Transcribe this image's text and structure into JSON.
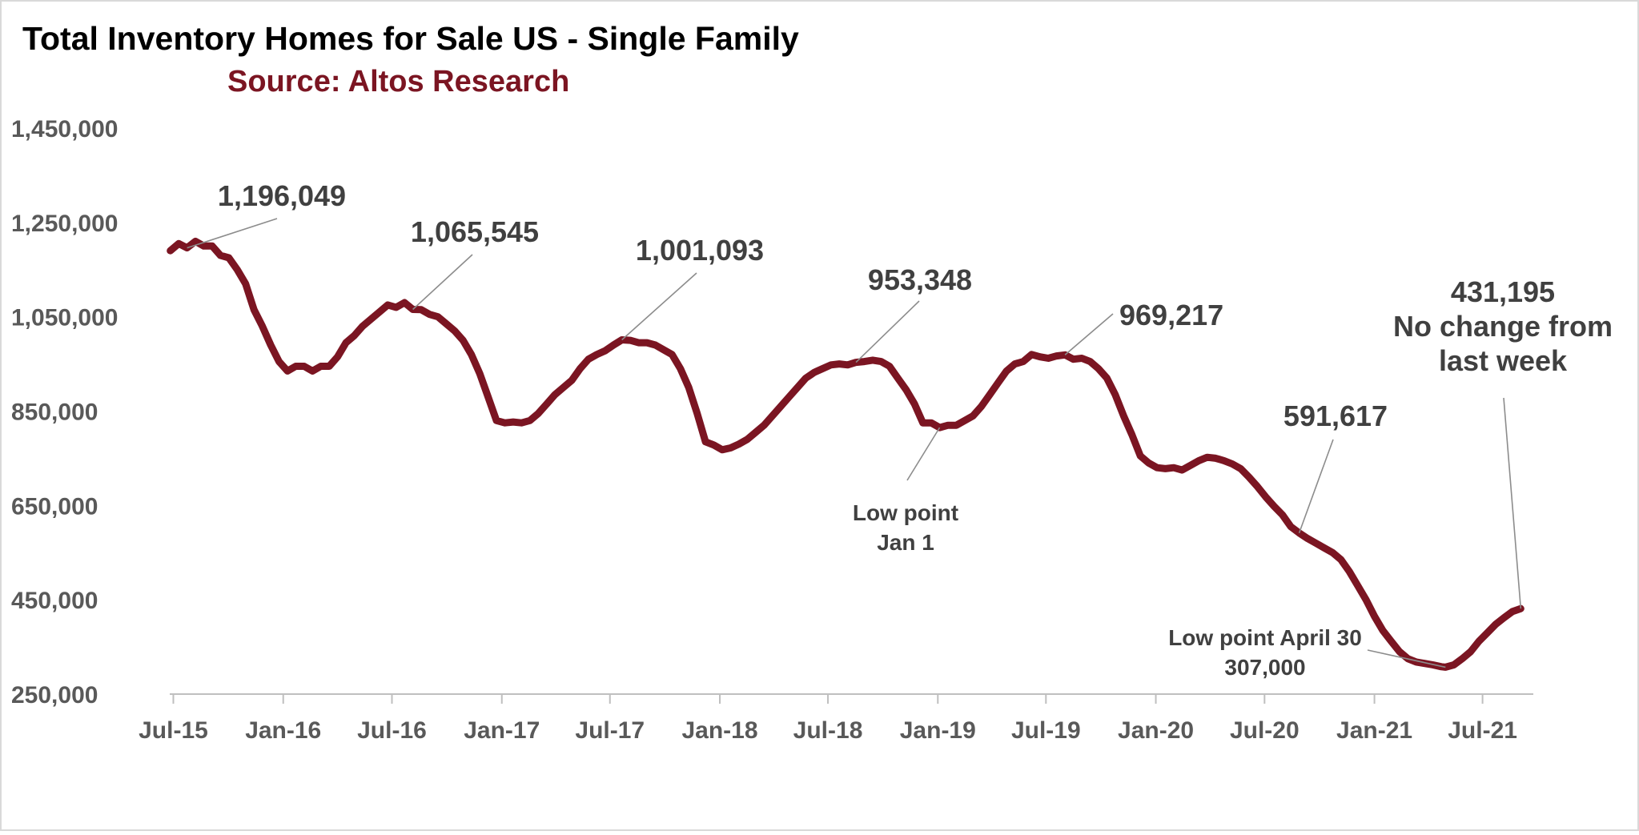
{
  "chart_data": {
    "type": "line",
    "title": "Total Inventory Homes for Sale US - Single Family",
    "subtitle": "Source: Altos Research",
    "series_color": "#7b1522",
    "xlabel": "",
    "ylabel": "",
    "x_start": "2015-06-25",
    "x_end": "2021-09-24",
    "ylim": [
      250000,
      1450000
    ],
    "y_ticks": [
      250000,
      450000,
      650000,
      850000,
      1050000,
      1250000,
      1450000
    ],
    "y_tick_labels": [
      "250,000",
      "450,000",
      "650,000",
      "850,000",
      "1,050,000",
      "1,250,000",
      "1,450,000"
    ],
    "x_ticks": [
      {
        "label": "Jul-15",
        "date": "2015-07-01"
      },
      {
        "label": "Jan-16",
        "date": "2016-01-01"
      },
      {
        "label": "Jul-16",
        "date": "2016-07-01"
      },
      {
        "label": "Jan-17",
        "date": "2017-01-01"
      },
      {
        "label": "Jul-17",
        "date": "2017-07-01"
      },
      {
        "label": "Jan-18",
        "date": "2018-01-01"
      },
      {
        "label": "Jul-18",
        "date": "2018-07-01"
      },
      {
        "label": "Jan-19",
        "date": "2019-01-01"
      },
      {
        "label": "Jul-19",
        "date": "2019-07-01"
      },
      {
        "label": "Jan-20",
        "date": "2020-01-01"
      },
      {
        "label": "Jul-20",
        "date": "2020-07-01"
      },
      {
        "label": "Jan-21",
        "date": "2021-01-01"
      },
      {
        "label": "Jul-21",
        "date": "2021-07-01"
      }
    ],
    "series": [
      {
        "name": "Total Inventory",
        "points": [
          [
            "2015-06-26",
            1190000
          ],
          [
            "2015-07-10",
            1205000
          ],
          [
            "2015-07-24",
            1196049
          ],
          [
            "2015-08-07",
            1210000
          ],
          [
            "2015-08-21",
            1200000
          ],
          [
            "2015-09-04",
            1200000
          ],
          [
            "2015-09-18",
            1180000
          ],
          [
            "2015-10-02",
            1175000
          ],
          [
            "2015-10-16",
            1150000
          ],
          [
            "2015-10-30",
            1120000
          ],
          [
            "2015-11-13",
            1065000
          ],
          [
            "2015-11-27",
            1030000
          ],
          [
            "2015-12-11",
            990000
          ],
          [
            "2015-12-25",
            955000
          ],
          [
            "2016-01-08",
            935000
          ],
          [
            "2016-01-22",
            945000
          ],
          [
            "2016-02-05",
            945000
          ],
          [
            "2016-02-19",
            935000
          ],
          [
            "2016-03-04",
            945000
          ],
          [
            "2016-03-18",
            945000
          ],
          [
            "2016-04-01",
            965000
          ],
          [
            "2016-04-15",
            995000
          ],
          [
            "2016-04-29",
            1010000
          ],
          [
            "2016-05-13",
            1030000
          ],
          [
            "2016-05-27",
            1045000
          ],
          [
            "2016-06-10",
            1060000
          ],
          [
            "2016-06-24",
            1075000
          ],
          [
            "2016-07-08",
            1070000
          ],
          [
            "2016-07-22",
            1080000
          ],
          [
            "2016-08-05",
            1065545
          ],
          [
            "2016-08-19",
            1065000
          ],
          [
            "2016-09-02",
            1055000
          ],
          [
            "2016-09-16",
            1050000
          ],
          [
            "2016-09-30",
            1035000
          ],
          [
            "2016-10-14",
            1020000
          ],
          [
            "2016-10-28",
            1000000
          ],
          [
            "2016-11-11",
            970000
          ],
          [
            "2016-11-25",
            930000
          ],
          [
            "2016-12-09",
            880000
          ],
          [
            "2016-12-23",
            830000
          ],
          [
            "2017-01-06",
            825000
          ],
          [
            "2017-01-20",
            827000
          ],
          [
            "2017-02-03",
            825000
          ],
          [
            "2017-02-17",
            830000
          ],
          [
            "2017-03-03",
            845000
          ],
          [
            "2017-03-17",
            865000
          ],
          [
            "2017-03-31",
            885000
          ],
          [
            "2017-04-14",
            900000
          ],
          [
            "2017-04-28",
            915000
          ],
          [
            "2017-05-12",
            940000
          ],
          [
            "2017-05-26",
            960000
          ],
          [
            "2017-06-09",
            970000
          ],
          [
            "2017-06-23",
            978000
          ],
          [
            "2017-07-07",
            990000
          ],
          [
            "2017-07-21",
            1001093
          ],
          [
            "2017-08-04",
            1000000
          ],
          [
            "2017-08-18",
            995000
          ],
          [
            "2017-09-01",
            995000
          ],
          [
            "2017-09-15",
            990000
          ],
          [
            "2017-09-29",
            980000
          ],
          [
            "2017-10-13",
            970000
          ],
          [
            "2017-10-27",
            940000
          ],
          [
            "2017-11-10",
            900000
          ],
          [
            "2017-11-24",
            845000
          ],
          [
            "2017-12-08",
            785000
          ],
          [
            "2017-12-22",
            778000
          ],
          [
            "2018-01-05",
            768000
          ],
          [
            "2018-01-19",
            772000
          ],
          [
            "2018-02-02",
            780000
          ],
          [
            "2018-02-16",
            790000
          ],
          [
            "2018-03-02",
            805000
          ],
          [
            "2018-03-16",
            820000
          ],
          [
            "2018-03-30",
            840000
          ],
          [
            "2018-04-13",
            860000
          ],
          [
            "2018-04-27",
            880000
          ],
          [
            "2018-05-11",
            900000
          ],
          [
            "2018-05-25",
            920000
          ],
          [
            "2018-06-08",
            932000
          ],
          [
            "2018-06-22",
            940000
          ],
          [
            "2018-07-06",
            948000
          ],
          [
            "2018-07-20",
            950000
          ],
          [
            "2018-08-03",
            948000
          ],
          [
            "2018-08-17",
            953348
          ],
          [
            "2018-08-31",
            955000
          ],
          [
            "2018-09-14",
            958000
          ],
          [
            "2018-09-28",
            955000
          ],
          [
            "2018-10-12",
            945000
          ],
          [
            "2018-10-26",
            920000
          ],
          [
            "2018-11-09",
            895000
          ],
          [
            "2018-11-23",
            865000
          ],
          [
            "2018-12-07",
            825000
          ],
          [
            "2018-12-21",
            825000
          ],
          [
            "2019-01-04",
            815000
          ],
          [
            "2019-01-18",
            820000
          ],
          [
            "2019-02-01",
            820000
          ],
          [
            "2019-02-15",
            830000
          ],
          [
            "2019-03-01",
            840000
          ],
          [
            "2019-03-15",
            860000
          ],
          [
            "2019-03-29",
            885000
          ],
          [
            "2019-04-12",
            910000
          ],
          [
            "2019-04-26",
            935000
          ],
          [
            "2019-05-10",
            950000
          ],
          [
            "2019-05-24",
            955000
          ],
          [
            "2019-06-07",
            970000
          ],
          [
            "2019-06-21",
            965000
          ],
          [
            "2019-07-05",
            962000
          ],
          [
            "2019-07-19",
            967000
          ],
          [
            "2019-08-02",
            969217
          ],
          [
            "2019-08-16",
            960000
          ],
          [
            "2019-08-30",
            962000
          ],
          [
            "2019-09-13",
            955000
          ],
          [
            "2019-09-27",
            940000
          ],
          [
            "2019-10-11",
            920000
          ],
          [
            "2019-10-25",
            885000
          ],
          [
            "2019-11-08",
            840000
          ],
          [
            "2019-11-22",
            800000
          ],
          [
            "2019-12-06",
            755000
          ],
          [
            "2019-12-20",
            740000
          ],
          [
            "2020-01-03",
            730000
          ],
          [
            "2020-01-17",
            728000
          ],
          [
            "2020-01-31",
            730000
          ],
          [
            "2020-02-14",
            725000
          ],
          [
            "2020-02-28",
            735000
          ],
          [
            "2020-03-13",
            745000
          ],
          [
            "2020-03-27",
            752000
          ],
          [
            "2020-04-10",
            750000
          ],
          [
            "2020-04-24",
            745000
          ],
          [
            "2020-05-08",
            738000
          ],
          [
            "2020-05-22",
            728000
          ],
          [
            "2020-06-05",
            710000
          ],
          [
            "2020-06-19",
            690000
          ],
          [
            "2020-07-03",
            668000
          ],
          [
            "2020-07-17",
            648000
          ],
          [
            "2020-07-31",
            630000
          ],
          [
            "2020-08-14",
            605000
          ],
          [
            "2020-08-28",
            591617
          ],
          [
            "2020-09-11",
            580000
          ],
          [
            "2020-09-25",
            570000
          ],
          [
            "2020-10-09",
            560000
          ],
          [
            "2020-10-23",
            550000
          ],
          [
            "2020-11-06",
            535000
          ],
          [
            "2020-11-20",
            510000
          ],
          [
            "2020-12-04",
            480000
          ],
          [
            "2020-12-18",
            450000
          ],
          [
            "2021-01-01",
            415000
          ],
          [
            "2021-01-15",
            385000
          ],
          [
            "2021-01-29",
            362000
          ],
          [
            "2021-02-12",
            340000
          ],
          [
            "2021-02-26",
            325000
          ],
          [
            "2021-03-12",
            318000
          ],
          [
            "2021-03-26",
            315000
          ],
          [
            "2021-04-09",
            312000
          ],
          [
            "2021-04-23",
            308000
          ],
          [
            "2021-04-30",
            307000
          ],
          [
            "2021-05-14",
            312000
          ],
          [
            "2021-05-28",
            325000
          ],
          [
            "2021-06-11",
            340000
          ],
          [
            "2021-06-25",
            362000
          ],
          [
            "2021-07-09",
            380000
          ],
          [
            "2021-07-23",
            398000
          ],
          [
            "2021-08-06",
            412000
          ],
          [
            "2021-08-20",
            425000
          ],
          [
            "2021-09-03",
            431195
          ]
        ]
      }
    ],
    "annotations": [
      {
        "lines": [
          "1,196,049"
        ],
        "point": [
          "2015-07-24",
          1196049
        ]
      },
      {
        "lines": [
          "1,065,545"
        ],
        "point": [
          "2016-08-05",
          1065545
        ]
      },
      {
        "lines": [
          "1,001,093"
        ],
        "point": [
          "2017-07-21",
          1001093
        ]
      },
      {
        "lines": [
          "953,348"
        ],
        "point": [
          "2018-08-17",
          953348
        ]
      },
      {
        "lines": [
          "969,217"
        ],
        "point": [
          "2019-08-02",
          969217
        ]
      },
      {
        "lines": [
          "Low point",
          "Jan 1"
        ],
        "point": [
          "2019-01-04",
          815000
        ]
      },
      {
        "lines": [
          "591,617"
        ],
        "point": [
          "2020-08-28",
          591617
        ]
      },
      {
        "lines": [
          "Low point April 30",
          "307,000"
        ],
        "point": [
          "2021-04-30",
          307000
        ]
      },
      {
        "lines": [
          "431,195",
          "No change from",
          "last week"
        ],
        "point": [
          "2021-09-03",
          431195
        ]
      }
    ]
  }
}
